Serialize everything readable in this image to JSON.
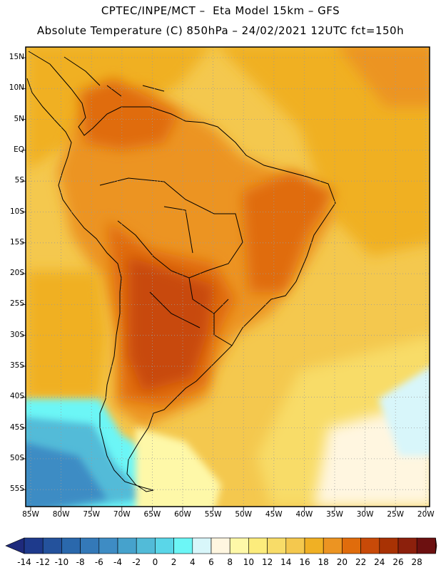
{
  "header": {
    "line1": "CPTEC/INPE/MCT –  Eta Model 15km – GFS",
    "line2": "Absolute Temperature (C) 850hPa – 24/02/2021 12UTC fct=150h"
  },
  "map": {
    "lat_labels": [
      "15N",
      "10N",
      "5N",
      "EQ",
      "5S",
      "10S",
      "15S",
      "20S",
      "25S",
      "30S",
      "35S",
      "40S",
      "45S",
      "50S",
      "55S"
    ],
    "lon_labels": [
      "85W",
      "80W",
      "75W",
      "70W",
      "65W",
      "60W",
      "55W",
      "50W",
      "45W",
      "40W",
      "35W",
      "30W",
      "25W",
      "20W"
    ],
    "lon_range": [
      -85,
      -20
    ],
    "lat_range": [
      -57,
      16
    ],
    "grid": "dotted"
  },
  "colorbar": {
    "labels": [
      "-14",
      "-12",
      "-10",
      "-8",
      "-6",
      "-4",
      "-2",
      "0",
      "2",
      "4",
      "6",
      "8",
      "10",
      "12",
      "14",
      "16",
      "18",
      "20",
      "22",
      "24",
      "26",
      "28"
    ],
    "colors": [
      "#1e3a8c",
      "#24529c",
      "#2a68ac",
      "#3479b8",
      "#3e8cc4",
      "#46a2cc",
      "#52bbd8",
      "#5ad6e8",
      "#6cf6f6",
      "#d8f6fa",
      "#fff6e0",
      "#fef8a8",
      "#fcec7c",
      "#f8dc68",
      "#f4c84e",
      "#f0b024",
      "#ec9422",
      "#e06c0c",
      "#c84a08",
      "#a83204",
      "#8c200c",
      "#6c1010"
    ],
    "under_color": "#1e2a7c",
    "over_color": "#74100e"
  }
}
